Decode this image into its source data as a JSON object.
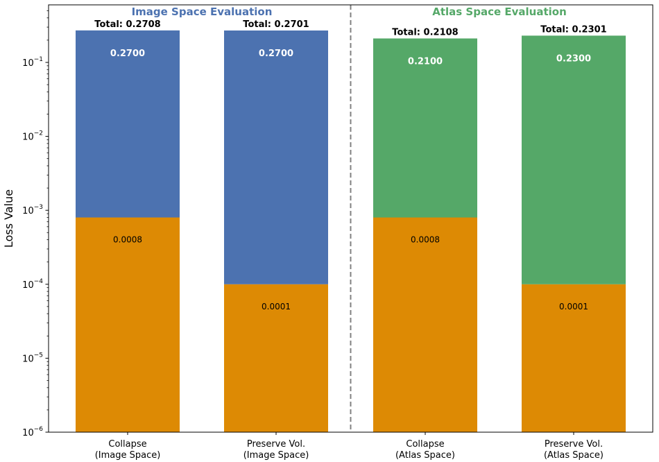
{
  "chart_data": {
    "type": "bar",
    "stacked": true,
    "yscale": "log",
    "ylabel": "Loss Value",
    "ylim": [
      1e-06,
      0.6
    ],
    "yticks": [
      {
        "value": 1e-06,
        "base": "10",
        "exp": "−6"
      },
      {
        "value": 1e-05,
        "base": "10",
        "exp": "−5"
      },
      {
        "value": 0.0001,
        "base": "10",
        "exp": "−4"
      },
      {
        "value": 0.001,
        "base": "10",
        "exp": "−3"
      },
      {
        "value": 0.01,
        "base": "10",
        "exp": "−2"
      },
      {
        "value": 0.1,
        "base": "10",
        "exp": "−1"
      }
    ],
    "groups": [
      {
        "title": "Image Space Evaluation",
        "color": "#4c72b0",
        "bar_indices": [
          0,
          1
        ]
      },
      {
        "title": "Atlas Space Evaluation",
        "color": "#55a868",
        "bar_indices": [
          2,
          3
        ]
      }
    ],
    "bars": [
      {
        "label_line1": "Collapse",
        "label_line2": "(Image Space)",
        "lower": 0.0008,
        "lower_label": "0.0008",
        "upper": 0.27,
        "upper_label": "0.2700",
        "total_label": "Total: 0.2708",
        "upper_color": "#4c72b0"
      },
      {
        "label_line1": "Preserve Vol.",
        "label_line2": "(Image Space)",
        "lower": 0.0001,
        "lower_label": "0.0001",
        "upper": 0.27,
        "upper_label": "0.2700",
        "total_label": "Total: 0.2701",
        "upper_color": "#4c72b0"
      },
      {
        "label_line1": "Collapse",
        "label_line2": "(Atlas Space)",
        "lower": 0.0008,
        "lower_label": "0.0008",
        "upper": 0.21,
        "upper_label": "0.2100",
        "total_label": "Total: 0.2108",
        "upper_color": "#55a868"
      },
      {
        "label_line1": "Preserve Vol.",
        "label_line2": "(Atlas Space)",
        "lower": 0.0001,
        "lower_label": "0.0001",
        "upper": 0.23,
        "upper_label": "0.2300",
        "total_label": "Total: 0.2301",
        "upper_color": "#55a868"
      }
    ],
    "lower_color": "#dd8a04",
    "divider": "dashed line between groups"
  }
}
